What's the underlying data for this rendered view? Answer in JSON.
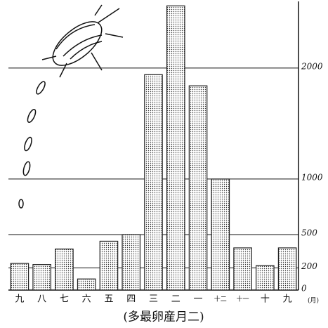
{
  "chart_data": {
    "type": "bar",
    "title": "(多最卵産月二)",
    "x_unit": "(月)",
    "categories": [
      "九",
      "八",
      "七",
      "六",
      "五",
      "四",
      "三",
      "二",
      "一",
      "十二",
      "十一",
      "十",
      "九"
    ],
    "values": [
      240,
      230,
      370,
      100,
      440,
      500,
      1940,
      2560,
      1840,
      1000,
      380,
      220,
      380
    ],
    "color": "#222",
    "ylim": [
      0,
      2600
    ],
    "yticks": [
      0,
      200,
      500,
      1000,
      2000
    ],
    "grid": true
  }
}
